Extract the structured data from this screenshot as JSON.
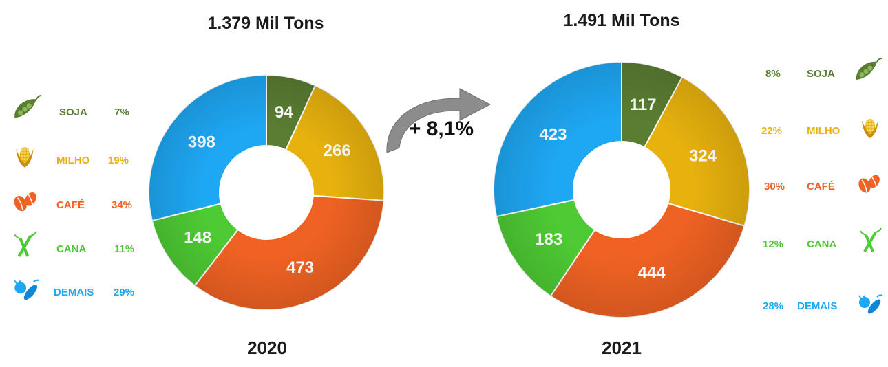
{
  "colors": {
    "soja": "#5a7d32",
    "milho": "#e8b20e",
    "cafe": "#ef6223",
    "cana": "#4ecb34",
    "demais": "#1ea7f3"
  },
  "growth_label": "+ 8,1%",
  "chart_data": [
    {
      "type": "pie",
      "title": "1.379 Mil Tons",
      "year": "2020",
      "categories": [
        "SOJA",
        "MILHO",
        "CAFÉ",
        "CANA",
        "DEMAIS"
      ],
      "values": [
        94,
        266,
        473,
        148,
        398
      ],
      "value_labels": [
        "94",
        "266",
        "473",
        "148",
        "398"
      ],
      "percent_labels": [
        "7%",
        "19%",
        "34%",
        "11%",
        "29%"
      ],
      "legend_position": "left"
    },
    {
      "type": "pie",
      "title": "1.491 Mil Tons",
      "year": "2021",
      "categories": [
        "SOJA",
        "MILHO",
        "CAFÉ",
        "CANA",
        "DEMAIS"
      ],
      "values": [
        117,
        324,
        444,
        183,
        423
      ],
      "value_labels": [
        "117",
        "324",
        "444",
        "183",
        "423"
      ],
      "percent_labels": [
        "8%",
        "22%",
        "30%",
        "12%",
        "28%"
      ],
      "legend_position": "right"
    }
  ],
  "icons": [
    "soybean-icon",
    "corn-icon",
    "coffee-bean-icon",
    "sugarcane-icon",
    "vegetables-icon"
  ]
}
